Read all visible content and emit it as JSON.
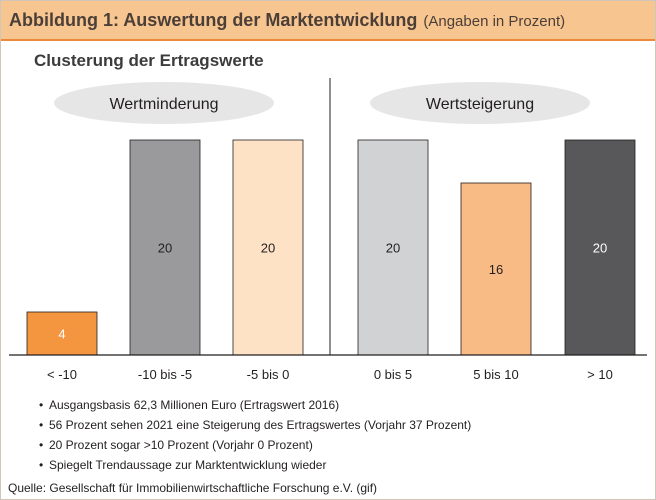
{
  "figure": {
    "title": "Abbildung 1: Auswertung der Marktentwicklung",
    "subtitle": "(Angaben in Prozent)",
    "chart_title": "Clusterung der Ertragswerte"
  },
  "groups": [
    {
      "label": "Wertminderung"
    },
    {
      "label": "Wertsteigerung"
    }
  ],
  "chart_data": {
    "type": "bar",
    "title": "Clusterung der Ertragswerte",
    "categories": [
      "< -10",
      "-10 bis -5",
      "-5 bis 0",
      "0 bis 5",
      "5 bis 10",
      "> 10"
    ],
    "values": [
      4,
      20,
      20,
      20,
      16,
      20
    ],
    "value_labels": [
      "4",
      "20",
      "20",
      "20",
      "16",
      "20"
    ],
    "colors": [
      "#f4953f",
      "#9a9a9c",
      "#fde2c6",
      "#d1d2d3",
      "#f9bb86",
      "#58585a"
    ],
    "label_colors": [
      "#ffffff",
      "#231f20",
      "#231f20",
      "#231f20",
      "#231f20",
      "#ffffff"
    ],
    "ylim": [
      0,
      20
    ],
    "grid": false,
    "legend": "none"
  },
  "notes": [
    "Ausgangsbasis 62,3 Millionen Euro (Ertragswert 2016)",
    "56 Prozent sehen 2021 eine Steigerung des Ertragswertes (Vorjahr 37 Prozent)",
    "20 Prozent sogar >10 Prozent (Vorjahr 0 Prozent)",
    "Spiegelt Trendaussage zur Marktentwicklung wieder"
  ],
  "source": "Quelle: Gesellschaft für Immobilienwirtschaftliche Forschung e.V. (gif)"
}
